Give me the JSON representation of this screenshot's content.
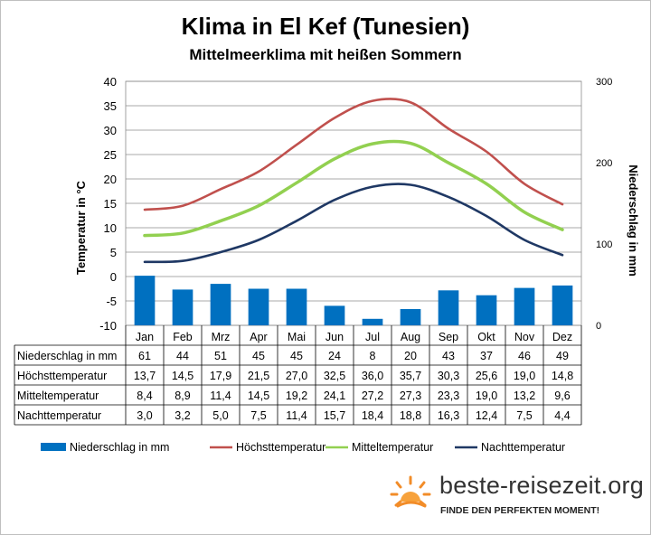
{
  "chart_data": {
    "type": "bar+line",
    "title": "Klima in El Kef (Tunesien)",
    "subtitle": "Mittelmeerklima mit heißen Sommern",
    "categories": [
      "Jan",
      "Feb",
      "Mrz",
      "Apr",
      "Mai",
      "Jun",
      "Jul",
      "Aug",
      "Sep",
      "Okt",
      "Nov",
      "Dez"
    ],
    "ylabel_left": "Temperatur in °C",
    "ylabel_right": "Niederschlag in mm",
    "ylim_left": [
      -10,
      40
    ],
    "yticks_left": [
      "40",
      "35",
      "30",
      "25",
      "20",
      "15",
      "10",
      "5",
      "0",
      "-5",
      "-10"
    ],
    "ylim_right": [
      0,
      300
    ],
    "yticks_right": [
      "300",
      "200",
      "100",
      "0"
    ],
    "grid": true,
    "legend_position": "bottom",
    "series": [
      {
        "name": "Niederschlag in mm",
        "type": "bar",
        "axis": "right",
        "color": "#0070c0",
        "values": [
          61,
          44,
          51,
          45,
          45,
          24,
          8,
          20,
          43,
          37,
          46,
          49
        ],
        "labels": [
          "61",
          "44",
          "51",
          "45",
          "45",
          "24",
          "8",
          "20",
          "43",
          "37",
          "46",
          "49"
        ]
      },
      {
        "name": "Höchsttemperatur",
        "type": "line",
        "axis": "left",
        "color": "#c0504d",
        "values": [
          13.7,
          14.5,
          17.9,
          21.5,
          27.0,
          32.5,
          36.0,
          35.7,
          30.3,
          25.6,
          19.0,
          14.8
        ],
        "labels": [
          "13,7",
          "14,5",
          "17,9",
          "21,5",
          "27,0",
          "32,5",
          "36,0",
          "35,7",
          "30,3",
          "25,6",
          "19,0",
          "14,8"
        ]
      },
      {
        "name": "Mitteltemperatur",
        "type": "line",
        "axis": "left",
        "color": "#92d050",
        "values": [
          8.4,
          8.9,
          11.4,
          14.5,
          19.2,
          24.1,
          27.2,
          27.3,
          23.3,
          19.0,
          13.2,
          9.6
        ],
        "labels": [
          "8,4",
          "8,9",
          "11,4",
          "14,5",
          "19,2",
          "24,1",
          "27,2",
          "27,3",
          "23,3",
          "19,0",
          "13,2",
          "9,6"
        ]
      },
      {
        "name": "Nachttemperatur",
        "type": "line",
        "axis": "left",
        "color": "#1f3864",
        "values": [
          3.0,
          3.2,
          5.0,
          7.5,
          11.4,
          15.7,
          18.4,
          18.8,
          16.3,
          12.4,
          7.5,
          4.4
        ],
        "labels": [
          "3,0",
          "3,2",
          "5,0",
          "7,5",
          "11,4",
          "15,7",
          "18,4",
          "18,8",
          "16,3",
          "12,4",
          "7,5",
          "4,4"
        ]
      }
    ],
    "month_labels": [
      "Jan",
      "Feb",
      "Mrz",
      "Apr",
      "Mai",
      "Jun",
      "Jul",
      "Aug",
      "Sep",
      "Okt",
      "Nov",
      "Dez"
    ],
    "table_rows": [
      "Niederschlag in mm",
      "Höchsttemperatur",
      "Mitteltemperatur",
      "Nachttemperatur"
    ]
  },
  "brand": {
    "name": "beste-reisezeit.org",
    "slogan": "FINDE DEN PERFEKTEN MOMENT!"
  }
}
